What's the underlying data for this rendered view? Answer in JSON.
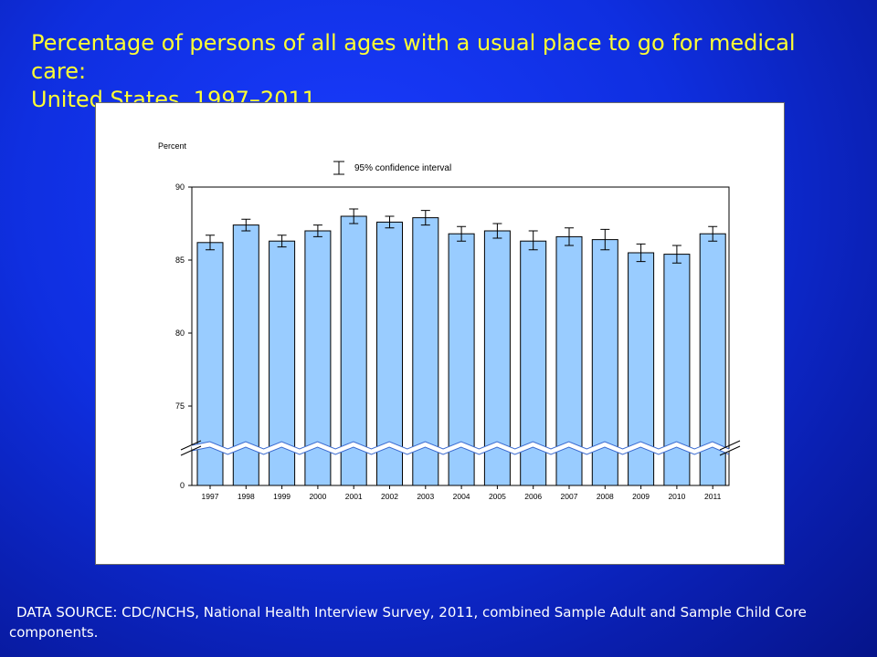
{
  "header": {
    "title_line1": "Percentage of persons of all ages with a usual place to go for medical care:",
    "title_line2": "United States, 1997–2011"
  },
  "footer": {
    "source": "DATA SOURCE: CDC/NCHS, National Health Interview Survey, 2011, combined Sample Adult and Sample Child Core components."
  },
  "colors": {
    "bar_fill": "#99ccff",
    "bar_stroke": "#000000",
    "title": "#ffff33"
  },
  "chart_data": {
    "type": "bar",
    "title": "",
    "xlabel": "",
    "ylabel": "Percent",
    "legend": "95% confidence interval",
    "legend_position": "top-center",
    "axis_break": true,
    "y_ticks": [
      0,
      75,
      80,
      85,
      90
    ],
    "ylim_upper": [
      72,
      90
    ],
    "categories": [
      "1997",
      "1998",
      "1999",
      "2000",
      "2001",
      "2002",
      "2003",
      "2004",
      "2005",
      "2006",
      "2007",
      "2008",
      "2009",
      "2010",
      "2011"
    ],
    "values": [
      86.2,
      87.4,
      86.3,
      87.0,
      88.0,
      87.6,
      87.9,
      86.8,
      87.0,
      86.3,
      86.6,
      86.4,
      85.5,
      85.4,
      86.8
    ],
    "ci_lower": [
      85.7,
      87.0,
      85.9,
      86.6,
      87.5,
      87.2,
      87.4,
      86.3,
      86.5,
      85.7,
      86.0,
      85.7,
      84.9,
      84.8,
      86.3
    ],
    "ci_upper": [
      86.7,
      87.8,
      86.7,
      87.4,
      88.5,
      88.0,
      88.4,
      87.3,
      87.5,
      87.0,
      87.2,
      87.1,
      86.1,
      86.0,
      87.3
    ],
    "grid": false
  }
}
